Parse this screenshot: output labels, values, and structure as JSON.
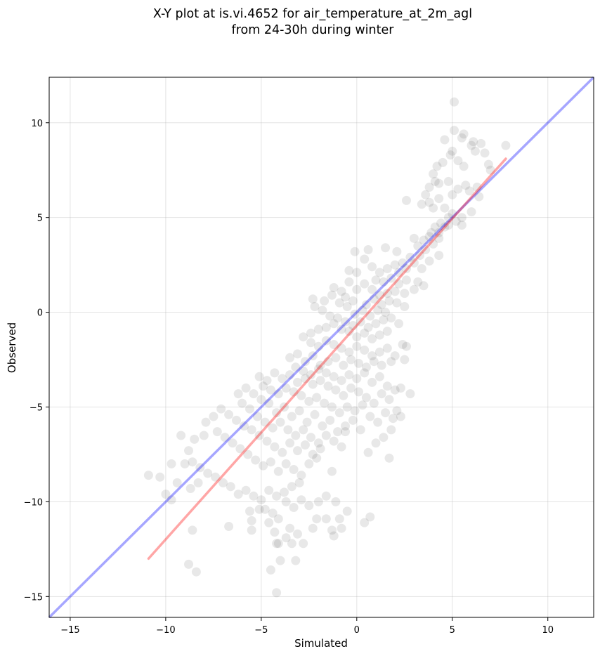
{
  "chart_data": {
    "type": "scatter",
    "title_lines": [
      "X-Y plot at is.vi.4652 for air_temperature_at_2m_agl",
      "from 24-30h during winter"
    ],
    "xlabel": "Simulated",
    "ylabel": "Observed",
    "xlim": [
      -16.1,
      12.4
    ],
    "ylim": [
      -16.1,
      12.4
    ],
    "xticks": [
      -15,
      -10,
      -5,
      0,
      5,
      10
    ],
    "yticks": [
      -15,
      -10,
      -5,
      0,
      5,
      10
    ],
    "tick_labels_x": [
      "−15",
      "−10",
      "−5",
      "0",
      "5",
      "10"
    ],
    "tick_labels_y": [
      "−15",
      "−10",
      "−5",
      "0",
      "5",
      "10"
    ],
    "grid": true,
    "point_color": "#000000",
    "point_alpha": 0.09,
    "one_to_one_line": {
      "color": "#0000ff",
      "alpha": 0.35,
      "from": [
        -16.1,
        -16.1
      ],
      "to": [
        12.4,
        12.4
      ]
    },
    "fit_line": {
      "color": "#ff0000",
      "alpha": 0.35,
      "from": [
        -10.9,
        -13.0
      ],
      "to": [
        7.8,
        8.1
      ]
    },
    "points": [
      [
        5.1,
        11.1
      ],
      [
        4.6,
        9.1
      ],
      [
        5.1,
        9.6
      ],
      [
        5.6,
        9.4
      ],
      [
        5.5,
        9.2
      ],
      [
        6.0,
        8.8
      ],
      [
        6.1,
        9.0
      ],
      [
        6.5,
        8.9
      ],
      [
        6.7,
        8.4
      ],
      [
        6.2,
        8.5
      ],
      [
        6.9,
        7.8
      ],
      [
        7.8,
        8.8
      ],
      [
        7.0,
        7.5
      ],
      [
        5.0,
        8.5
      ],
      [
        4.9,
        8.3
      ],
      [
        5.3,
        8.0
      ],
      [
        5.6,
        7.7
      ],
      [
        4.5,
        7.9
      ],
      [
        4.2,
        7.7
      ],
      [
        4.0,
        7.3
      ],
      [
        4.1,
        6.9
      ],
      [
        4.3,
        6.8
      ],
      [
        4.8,
        6.9
      ],
      [
        5.3,
        6.5
      ],
      [
        5.7,
        6.7
      ],
      [
        5.9,
        6.4
      ],
      [
        6.3,
        6.6
      ],
      [
        6.4,
        6.1
      ],
      [
        5.0,
        6.2
      ],
      [
        4.3,
        6.0
      ],
      [
        3.8,
        6.6
      ],
      [
        3.6,
        6.2
      ],
      [
        3.8,
        5.8
      ],
      [
        3.4,
        5.7
      ],
      [
        4.0,
        5.5
      ],
      [
        4.6,
        5.5
      ],
      [
        5.0,
        5.2
      ],
      [
        5.5,
        5.0
      ],
      [
        6.0,
        5.3
      ],
      [
        5.5,
        4.6
      ],
      [
        5.2,
        4.8
      ],
      [
        4.8,
        5.0
      ],
      [
        4.4,
        4.7
      ],
      [
        4.1,
        4.5
      ],
      [
        3.9,
        4.2
      ],
      [
        4.3,
        4.2
      ],
      [
        4.6,
        4.5
      ],
      [
        4.8,
        4.6
      ],
      [
        3.8,
        4.0
      ],
      [
        3.5,
        3.8
      ],
      [
        4.0,
        3.6
      ],
      [
        4.3,
        3.9
      ],
      [
        3.6,
        3.3
      ],
      [
        3.2,
        3.5
      ],
      [
        3.0,
        3.9
      ],
      [
        2.6,
        5.9
      ],
      [
        1.5,
        3.4
      ],
      [
        0.6,
        3.3
      ],
      [
        2.1,
        3.2
      ],
      [
        2.8,
        2.9
      ],
      [
        3.3,
        3.0
      ],
      [
        3.8,
        2.7
      ],
      [
        4.3,
        3.0
      ],
      [
        2.4,
        2.6
      ],
      [
        2.0,
        2.5
      ],
      [
        1.6,
        2.3
      ],
      [
        2.2,
        2.1
      ],
      [
        2.6,
        2.3
      ],
      [
        3.0,
        2.6
      ],
      [
        3.4,
        2.3
      ],
      [
        1.2,
        2.1
      ],
      [
        0.8,
        2.4
      ],
      [
        0.4,
        2.8
      ],
      [
        0.0,
        2.1
      ],
      [
        -0.4,
        2.2
      ],
      [
        -0.1,
        3.2
      ],
      [
        1.0,
        1.7
      ],
      [
        1.4,
        1.6
      ],
      [
        1.8,
        1.8
      ],
      [
        2.2,
        1.5
      ],
      [
        2.6,
        1.7
      ],
      [
        3.2,
        1.6
      ],
      [
        3.5,
        1.4
      ],
      [
        3.0,
        1.2
      ],
      [
        2.5,
        1.0
      ],
      [
        2.0,
        1.1
      ],
      [
        1.6,
        1.0
      ],
      [
        1.2,
        0.9
      ],
      [
        0.8,
        1.2
      ],
      [
        0.4,
        1.5
      ],
      [
        0.0,
        1.2
      ],
      [
        -0.4,
        1.6
      ],
      [
        -0.8,
        1.1
      ],
      [
        -1.2,
        1.3
      ],
      [
        -0.6,
        0.8
      ],
      [
        -0.2,
        0.6
      ],
      [
        0.5,
        0.4
      ],
      [
        0.9,
        0.7
      ],
      [
        1.3,
        0.4
      ],
      [
        1.7,
        0.6
      ],
      [
        2.1,
        0.5
      ],
      [
        2.5,
        0.3
      ],
      [
        1.5,
        0.0
      ],
      [
        1.1,
        0.1
      ],
      [
        0.7,
        -0.2
      ],
      [
        0.3,
        0.1
      ],
      [
        -0.1,
        -0.1
      ],
      [
        -0.5,
        0.3
      ],
      [
        -0.9,
        0.5
      ],
      [
        -1.3,
        0.9
      ],
      [
        -1.7,
        0.6
      ],
      [
        -2.3,
        0.7
      ],
      [
        -2.2,
        0.3
      ],
      [
        -1.8,
        0.1
      ],
      [
        -1.4,
        -0.2
      ],
      [
        -1.0,
        -0.3
      ],
      [
        -0.6,
        -0.5
      ],
      [
        -0.2,
        -0.7
      ],
      [
        0.2,
        -0.5
      ],
      [
        0.6,
        -0.8
      ],
      [
        1.0,
        -0.6
      ],
      [
        1.4,
        -0.4
      ],
      [
        1.8,
        -0.3
      ],
      [
        2.2,
        -0.6
      ],
      [
        1.6,
        -1.0
      ],
      [
        1.2,
        -1.2
      ],
      [
        0.8,
        -1.4
      ],
      [
        0.4,
        -1.1
      ],
      [
        0.0,
        -1.3
      ],
      [
        -0.4,
        -1.0
      ],
      [
        -0.8,
        -0.9
      ],
      [
        -1.2,
        -0.6
      ],
      [
        -1.6,
        -0.8
      ],
      [
        -2.0,
        -0.9
      ],
      [
        -2.4,
        -1.1
      ],
      [
        -2.8,
        -1.3
      ],
      [
        -2.4,
        -1.6
      ],
      [
        -2.0,
        -1.8
      ],
      [
        -1.6,
        -1.5
      ],
      [
        -1.2,
        -1.7
      ],
      [
        -0.8,
        -1.9
      ],
      [
        -0.4,
        -2.1
      ],
      [
        0.0,
        -1.8
      ],
      [
        0.4,
        -2.0
      ],
      [
        0.8,
        -2.3
      ],
      [
        1.2,
        -2.1
      ],
      [
        1.6,
        -1.9
      ],
      [
        2.0,
        -2.3
      ],
      [
        2.4,
        -1.7
      ],
      [
        2.6,
        -1.8
      ],
      [
        2.5,
        -2.5
      ],
      [
        1.8,
        -2.6
      ],
      [
        1.3,
        -2.8
      ],
      [
        0.9,
        -2.6
      ],
      [
        0.5,
        -2.9
      ],
      [
        0.1,
        -2.7
      ],
      [
        -0.3,
        -2.5
      ],
      [
        -0.7,
        -2.8
      ],
      [
        -1.1,
        -2.4
      ],
      [
        -1.5,
        -2.6
      ],
      [
        -1.9,
        -2.8
      ],
      [
        -2.3,
        -2.3
      ],
      [
        -2.7,
        -2.6
      ],
      [
        -3.1,
        -2.2
      ],
      [
        -3.5,
        -2.4
      ],
      [
        -3.2,
        -2.9
      ],
      [
        -2.8,
        -3.1
      ],
      [
        -2.4,
        -3.3
      ],
      [
        -2.0,
        -3.0
      ],
      [
        -1.6,
        -3.2
      ],
      [
        -1.2,
        -3.4
      ],
      [
        -0.8,
        -3.6
      ],
      [
        -0.4,
        -3.3
      ],
      [
        0.0,
        -3.5
      ],
      [
        0.4,
        -3.2
      ],
      [
        0.8,
        -3.7
      ],
      [
        1.2,
        -3.4
      ],
      [
        1.6,
        -3.9
      ],
      [
        2.0,
        -4.1
      ],
      [
        2.3,
        -4.0
      ],
      [
        2.8,
        -4.3
      ],
      [
        1.7,
        -4.6
      ],
      [
        1.3,
        -4.3
      ],
      [
        0.9,
        -4.8
      ],
      [
        0.5,
        -4.5
      ],
      [
        0.1,
        -4.2
      ],
      [
        -0.3,
        -4.0
      ],
      [
        -0.7,
        -4.4
      ],
      [
        -1.1,
        -4.1
      ],
      [
        -1.5,
        -3.9
      ],
      [
        -1.9,
        -3.6
      ],
      [
        -2.3,
        -3.8
      ],
      [
        -2.7,
        -3.5
      ],
      [
        -3.1,
        -3.7
      ],
      [
        -3.5,
        -3.3
      ],
      [
        -3.9,
        -3.5
      ],
      [
        -4.3,
        -3.2
      ],
      [
        -4.7,
        -3.6
      ],
      [
        -5.1,
        -3.4
      ],
      [
        -4.9,
        -3.9
      ],
      [
        -4.5,
        -4.1
      ],
      [
        -4.1,
        -4.3
      ],
      [
        -3.7,
        -4.0
      ],
      [
        -3.3,
        -4.2
      ],
      [
        -2.9,
        -4.4
      ],
      [
        -2.5,
        -4.7
      ],
      [
        -2.1,
        -4.5
      ],
      [
        -1.7,
        -4.8
      ],
      [
        -1.3,
        -5.0
      ],
      [
        -0.9,
        -5.3
      ],
      [
        -0.5,
        -5.0
      ],
      [
        -0.1,
        -5.2
      ],
      [
        0.3,
        -4.9
      ],
      [
        0.7,
        -5.5
      ],
      [
        1.1,
        -5.8
      ],
      [
        1.5,
        -5.3
      ],
      [
        1.9,
        -5.6
      ],
      [
        2.1,
        -5.2
      ],
      [
        2.3,
        -5.5
      ],
      [
        1.8,
        -6.2
      ],
      [
        1.4,
        -6.6
      ],
      [
        1.0,
        -6.9
      ],
      [
        1.7,
        -7.7
      ],
      [
        0.6,
        -7.4
      ],
      [
        0.2,
        -6.2
      ],
      [
        -0.2,
        -5.7
      ],
      [
        -0.6,
        -6.0
      ],
      [
        -1.0,
        -6.3
      ],
      [
        -1.4,
        -5.7
      ],
      [
        -1.8,
        -6.0
      ],
      [
        -2.2,
        -5.4
      ],
      [
        -2.6,
        -5.8
      ],
      [
        -3.0,
        -5.2
      ],
      [
        -3.4,
        -5.5
      ],
      [
        -3.8,
        -5.0
      ],
      [
        -4.2,
        -5.3
      ],
      [
        -4.6,
        -4.8
      ],
      [
        -5.0,
        -4.6
      ],
      [
        -5.4,
        -4.3
      ],
      [
        -5.8,
        -4.0
      ],
      [
        -6.2,
        -4.3
      ],
      [
        -6.0,
        -4.8
      ],
      [
        -5.6,
        -5.1
      ],
      [
        -5.2,
        -5.5
      ],
      [
        -4.8,
        -5.8
      ],
      [
        -4.4,
        -6.1
      ],
      [
        -4.0,
        -5.8
      ],
      [
        -3.6,
        -6.2
      ],
      [
        -3.2,
        -6.5
      ],
      [
        -2.8,
        -6.2
      ],
      [
        -2.4,
        -6.6
      ],
      [
        -2.0,
        -6.9
      ],
      [
        -1.6,
        -6.5
      ],
      [
        -1.2,
        -6.8
      ],
      [
        -0.8,
        -7.1
      ],
      [
        -0.6,
        -6.3
      ],
      [
        -1.9,
        -7.2
      ],
      [
        -2.3,
        -7.5
      ],
      [
        -2.7,
        -7.0
      ],
      [
        -3.1,
        -7.3
      ],
      [
        -3.5,
        -6.9
      ],
      [
        -3.9,
        -7.4
      ],
      [
        -4.3,
        -7.1
      ],
      [
        -4.7,
        -6.8
      ],
      [
        -5.1,
        -6.5
      ],
      [
        -5.5,
        -6.2
      ],
      [
        -5.9,
        -6.0
      ],
      [
        -6.3,
        -5.7
      ],
      [
        -6.7,
        -5.4
      ],
      [
        -7.1,
        -5.1
      ],
      [
        -7.5,
        -5.5
      ],
      [
        -7.9,
        -5.8
      ],
      [
        -7.3,
        -6.3
      ],
      [
        -6.9,
        -6.6
      ],
      [
        -6.5,
        -6.9
      ],
      [
        -6.1,
        -7.2
      ],
      [
        -5.7,
        -7.5
      ],
      [
        -5.3,
        -7.8
      ],
      [
        -4.9,
        -8.1
      ],
      [
        -4.5,
        -7.9
      ],
      [
        -4.1,
        -8.4
      ],
      [
        -3.7,
        -8.0
      ],
      [
        -3.3,
        -8.3
      ],
      [
        -2.9,
        -8.6
      ],
      [
        -2.5,
        -8.0
      ],
      [
        -2.1,
        -7.7
      ],
      [
        -1.3,
        -8.4
      ],
      [
        -3.0,
        -9.0
      ],
      [
        -3.4,
        -9.2
      ],
      [
        -3.8,
        -9.5
      ],
      [
        -4.2,
        -9.7
      ],
      [
        -4.6,
        -9.4
      ],
      [
        -5.0,
        -9.9
      ],
      [
        -5.4,
        -9.7
      ],
      [
        -5.8,
        -9.4
      ],
      [
        -6.2,
        -9.6
      ],
      [
        -6.6,
        -9.2
      ],
      [
        -7.0,
        -9.0
      ],
      [
        -7.4,
        -8.7
      ],
      [
        -7.8,
        -8.5
      ],
      [
        -8.2,
        -8.2
      ],
      [
        -8.6,
        -7.9
      ],
      [
        -9.0,
        -8.0
      ],
      [
        -8.8,
        -7.3
      ],
      [
        -9.2,
        -6.5
      ],
      [
        -8.5,
        -6.7
      ],
      [
        -8.0,
        -6.5
      ],
      [
        -8.3,
        -9.0
      ],
      [
        -8.7,
        -9.3
      ],
      [
        -9.4,
        -9.0
      ],
      [
        -9.7,
        -8.0
      ],
      [
        -10.3,
        -8.7
      ],
      [
        -10.9,
        -8.6
      ],
      [
        -10.0,
        -9.6
      ],
      [
        -9.7,
        -9.9
      ],
      [
        -8.6,
        -11.5
      ],
      [
        -8.8,
        -13.3
      ],
      [
        -8.4,
        -13.7
      ],
      [
        -6.7,
        -11.3
      ],
      [
        -5.5,
        -11.5
      ],
      [
        -5.5,
        -11.0
      ],
      [
        -4.8,
        -10.4
      ],
      [
        -4.4,
        -10.6
      ],
      [
        -4.6,
        -11.1
      ],
      [
        -4.3,
        -11.6
      ],
      [
        -4.1,
        -12.2
      ],
      [
        -3.7,
        -11.9
      ],
      [
        -3.5,
        -11.4
      ],
      [
        -3.1,
        -11.7
      ],
      [
        -2.8,
        -12.2
      ],
      [
        -2.3,
        -11.4
      ],
      [
        -2.1,
        -10.9
      ],
      [
        -1.6,
        -10.9
      ],
      [
        -1.3,
        -11.5
      ],
      [
        -1.2,
        -11.8
      ],
      [
        -0.8,
        -11.4
      ],
      [
        -0.9,
        -10.9
      ],
      [
        -0.5,
        -10.5
      ],
      [
        0.4,
        -11.1
      ],
      [
        0.7,
        -10.8
      ],
      [
        -1.1,
        -10.0
      ],
      [
        -1.6,
        -9.7
      ],
      [
        -2.0,
        -10.0
      ],
      [
        -2.5,
        -10.2
      ],
      [
        -2.9,
        -9.9
      ],
      [
        -3.3,
        -10.3
      ],
      [
        -3.7,
        -10.0
      ],
      [
        -4.1,
        -10.9
      ],
      [
        -4.2,
        -12.2
      ],
      [
        -3.4,
        -12.2
      ],
      [
        -4.0,
        -13.1
      ],
      [
        -3.2,
        -13.1
      ],
      [
        -4.5,
        -13.6
      ],
      [
        -4.2,
        -14.8
      ],
      [
        -5.6,
        -10.5
      ],
      [
        -5.1,
        -10.4
      ]
    ]
  }
}
